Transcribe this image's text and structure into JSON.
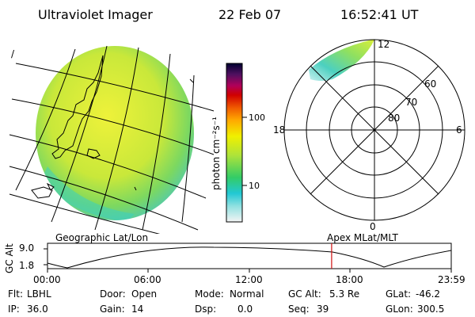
{
  "header": {
    "title": "Ultraviolet Imager",
    "date": "22 Feb 07",
    "time": "16:52:41 UT"
  },
  "left_map": {
    "label": "Geographic Lat/Lon",
    "corner_mark": "/"
  },
  "colorbar": {
    "unit_label": "photon cm⁻²s⁻¹",
    "ticks": [
      "100",
      "10"
    ]
  },
  "polar_plot": {
    "label": "Apex MLat/MLT",
    "mlt_labels": {
      "top": "12",
      "bottom": "0",
      "left": "18",
      "right": "6"
    },
    "lat_labels": [
      "60",
      "70",
      "80"
    ]
  },
  "altitude_plot": {
    "axis_label": "GC Alt",
    "y_ticks": [
      "9.0",
      "1.8"
    ],
    "x_ticks": [
      "00:00",
      "06:00",
      "12:00",
      "18:00",
      "23:59"
    ],
    "marker_color": "#d01010",
    "marker_time_hours": 16.88
  },
  "status": {
    "flt": {
      "label": "Flt:",
      "value": "LBHL"
    },
    "ip": {
      "label": "IP:",
      "value": "36.0"
    },
    "door": {
      "label": "Door:",
      "value": "Open"
    },
    "gain": {
      "label": "Gain:",
      "value": "14"
    },
    "mode": {
      "label": "Mode:",
      "value": "Normal"
    },
    "dsp": {
      "label": "Dsp:",
      "value": "0.0"
    },
    "gcalt": {
      "label": "GC Alt:",
      "value": "5.3 Re"
    },
    "seq": {
      "label": "Seq:",
      "value": "39"
    },
    "glat": {
      "label": "GLat:",
      "value": "-46.2"
    },
    "glon": {
      "label": "GLon:",
      "value": "300.5"
    }
  }
}
